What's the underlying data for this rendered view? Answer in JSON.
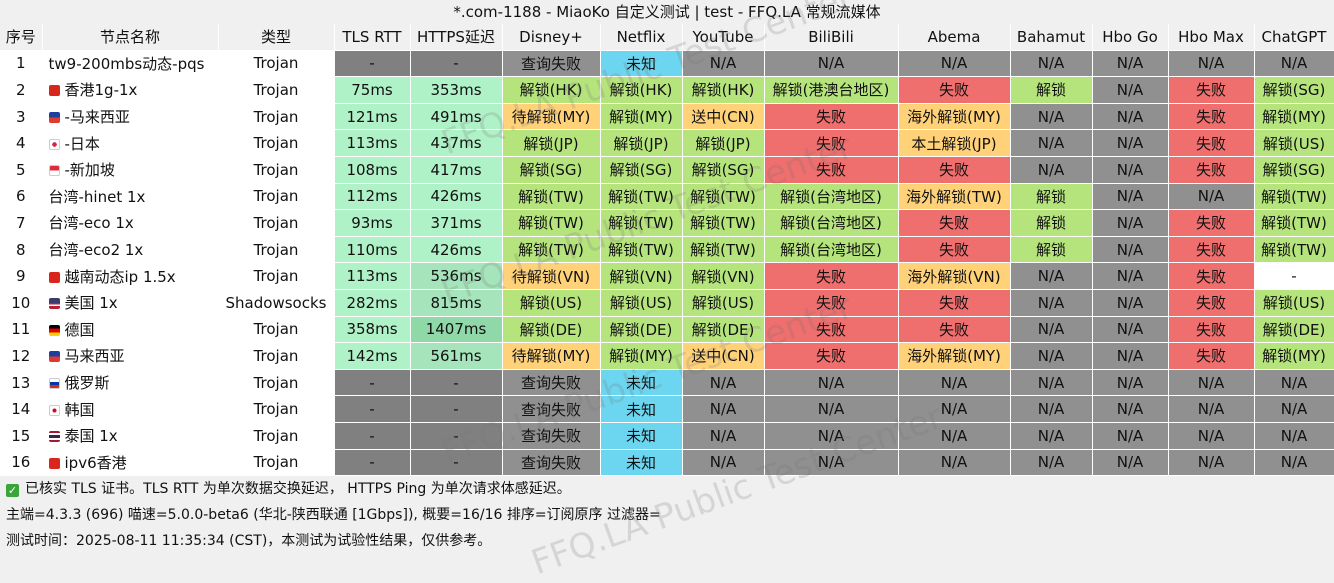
{
  "title": "*.com-1188 - MiaoKo 自定义测试 | test - FFQ.LA 常规流媒体",
  "columns": [
    "序号",
    "节点名称",
    "类型",
    "TLS RTT",
    "HTTPS延迟",
    "Disney+",
    "Netflix",
    "YouTube",
    "BiliBili",
    "Abema",
    "Bahamut",
    "Hbo Go",
    "Hbo Max",
    "ChatGPT"
  ],
  "rows": [
    {
      "idx": "1",
      "flag": "",
      "name": "tw9-200mbs动态-pqs",
      "type": "Trojan",
      "tls": "-",
      "https": "-",
      "disney": "查询失败",
      "netflix": "未知",
      "youtube": "N/A",
      "bili": "N/A",
      "abema": "N/A",
      "bahamut": "N/A",
      "hbogo": "N/A",
      "hbomax": "N/A",
      "chatgpt": "N/A"
    },
    {
      "idx": "2",
      "flag": "hk",
      "name": "香港1g-1x",
      "type": "Trojan",
      "tls": "75ms",
      "https": "353ms",
      "disney": "解锁(HK)",
      "netflix": "解锁(HK)",
      "youtube": "解锁(HK)",
      "bili": "解锁(港澳台地区)",
      "abema": "失败",
      "bahamut": "解锁",
      "hbogo": "N/A",
      "hbomax": "失败",
      "chatgpt": "解锁(SG)"
    },
    {
      "idx": "3",
      "flag": "my",
      "name": "-马来西亚",
      "type": "Trojan",
      "tls": "121ms",
      "https": "491ms",
      "disney": "待解锁(MY)",
      "netflix": "解锁(MY)",
      "youtube": "送中(CN)",
      "bili": "失败",
      "abema": "海外解锁(MY)",
      "bahamut": "N/A",
      "hbogo": "N/A",
      "hbomax": "失败",
      "chatgpt": "解锁(MY)"
    },
    {
      "idx": "4",
      "flag": "jp",
      "name": "-日本",
      "type": "Trojan",
      "tls": "113ms",
      "https": "437ms",
      "disney": "解锁(JP)",
      "netflix": "解锁(JP)",
      "youtube": "解锁(JP)",
      "bili": "失败",
      "abema": "本土解锁(JP)",
      "bahamut": "N/A",
      "hbogo": "N/A",
      "hbomax": "失败",
      "chatgpt": "解锁(US)"
    },
    {
      "idx": "5",
      "flag": "sg",
      "name": "-新加坡",
      "type": "Trojan",
      "tls": "108ms",
      "https": "417ms",
      "disney": "解锁(SG)",
      "netflix": "解锁(SG)",
      "youtube": "解锁(SG)",
      "bili": "失败",
      "abema": "失败",
      "bahamut": "N/A",
      "hbogo": "N/A",
      "hbomax": "失败",
      "chatgpt": "解锁(SG)"
    },
    {
      "idx": "6",
      "flag": "",
      "name": "台湾-hinet 1x",
      "type": "Trojan",
      "tls": "112ms",
      "https": "426ms",
      "disney": "解锁(TW)",
      "netflix": "解锁(TW)",
      "youtube": "解锁(TW)",
      "bili": "解锁(台湾地区)",
      "abema": "海外解锁(TW)",
      "bahamut": "解锁",
      "hbogo": "N/A",
      "hbomax": "N/A",
      "chatgpt": "解锁(TW)"
    },
    {
      "idx": "7",
      "flag": "",
      "name": "台湾-eco 1x",
      "type": "Trojan",
      "tls": "93ms",
      "https": "371ms",
      "disney": "解锁(TW)",
      "netflix": "解锁(TW)",
      "youtube": "解锁(TW)",
      "bili": "解锁(台湾地区)",
      "abema": "失败",
      "bahamut": "解锁",
      "hbogo": "N/A",
      "hbomax": "失败",
      "chatgpt": "解锁(TW)"
    },
    {
      "idx": "8",
      "flag": "",
      "name": "台湾-eco2 1x",
      "type": "Trojan",
      "tls": "110ms",
      "https": "426ms",
      "disney": "解锁(TW)",
      "netflix": "解锁(TW)",
      "youtube": "解锁(TW)",
      "bili": "解锁(台湾地区)",
      "abema": "失败",
      "bahamut": "解锁",
      "hbogo": "N/A",
      "hbomax": "失败",
      "chatgpt": "解锁(TW)"
    },
    {
      "idx": "9",
      "flag": "vn",
      "name": "越南动态ip 1.5x",
      "type": "Trojan",
      "tls": "113ms",
      "https": "536ms",
      "disney": "待解锁(VN)",
      "netflix": "解锁(VN)",
      "youtube": "解锁(VN)",
      "bili": "失败",
      "abema": "海外解锁(VN)",
      "bahamut": "N/A",
      "hbogo": "N/A",
      "hbomax": "失败",
      "chatgpt": "-"
    },
    {
      "idx": "10",
      "flag": "us",
      "name": "美国 1x",
      "type": "Shadowsocks",
      "tls": "282ms",
      "https": "815ms",
      "disney": "解锁(US)",
      "netflix": "解锁(US)",
      "youtube": "解锁(US)",
      "bili": "失败",
      "abema": "失败",
      "bahamut": "N/A",
      "hbogo": "N/A",
      "hbomax": "失败",
      "chatgpt": "解锁(US)"
    },
    {
      "idx": "11",
      "flag": "de",
      "name": "德国",
      "type": "Trojan",
      "tls": "358ms",
      "https": "1407ms",
      "disney": "解锁(DE)",
      "netflix": "解锁(DE)",
      "youtube": "解锁(DE)",
      "bili": "失败",
      "abema": "失败",
      "bahamut": "N/A",
      "hbogo": "N/A",
      "hbomax": "失败",
      "chatgpt": "解锁(DE)"
    },
    {
      "idx": "12",
      "flag": "my",
      "name": "马来西亚",
      "type": "Trojan",
      "tls": "142ms",
      "https": "561ms",
      "disney": "待解锁(MY)",
      "netflix": "解锁(MY)",
      "youtube": "送中(CN)",
      "bili": "失败",
      "abema": "海外解锁(MY)",
      "bahamut": "N/A",
      "hbogo": "N/A",
      "hbomax": "失败",
      "chatgpt": "解锁(MY)"
    },
    {
      "idx": "13",
      "flag": "ru",
      "name": "俄罗斯",
      "type": "Trojan",
      "tls": "-",
      "https": "-",
      "disney": "查询失败",
      "netflix": "未知",
      "youtube": "N/A",
      "bili": "N/A",
      "abema": "N/A",
      "bahamut": "N/A",
      "hbogo": "N/A",
      "hbomax": "N/A",
      "chatgpt": "N/A"
    },
    {
      "idx": "14",
      "flag": "kr",
      "name": "韩国",
      "type": "Trojan",
      "tls": "-",
      "https": "-",
      "disney": "查询失败",
      "netflix": "未知",
      "youtube": "N/A",
      "bili": "N/A",
      "abema": "N/A",
      "bahamut": "N/A",
      "hbogo": "N/A",
      "hbomax": "N/A",
      "chatgpt": "N/A"
    },
    {
      "idx": "15",
      "flag": "th",
      "name": "泰国 1x",
      "type": "Trojan",
      "tls": "-",
      "https": "-",
      "disney": "查询失败",
      "netflix": "未知",
      "youtube": "N/A",
      "bili": "N/A",
      "abema": "N/A",
      "bahamut": "N/A",
      "hbogo": "N/A",
      "hbomax": "N/A",
      "chatgpt": "N/A"
    },
    {
      "idx": "16",
      "flag": "hk",
      "name": "ipv6香港",
      "type": "Trojan",
      "tls": "-",
      "https": "-",
      "disney": "查询失败",
      "netflix": "未知",
      "youtube": "N/A",
      "bili": "N/A",
      "abema": "N/A",
      "bahamut": "N/A",
      "hbogo": "N/A",
      "hbomax": "N/A",
      "chatgpt": "N/A"
    }
  ],
  "footer": {
    "line1": "已核实 TLS 证书。TLS RTT 为单次数据交换延迟， HTTPS Ping 为单次请求体感延迟。",
    "line2": "主端=4.3.3 (696) 喵速=5.0.0-beta6 (华北-陕西联通 [1Gbps]), 概要=16/16 排序=订阅原序 过滤器=",
    "line3": "测试时间：2025-08-11 11:35:34 (CST)，本测试为试验性结果，仅供参考。"
  },
  "watermark": "FFQ.LA Public Test Center",
  "colors": {
    "unlock": "#b6e47c",
    "pending": "#ffd27a",
    "fail": "#ef6e6e",
    "unknown": "#6cd6f0",
    "na": "#909090",
    "dash": "#808080",
    "latency_low": "#b0f2c8",
    "latency_high": "#8fd8a8"
  }
}
